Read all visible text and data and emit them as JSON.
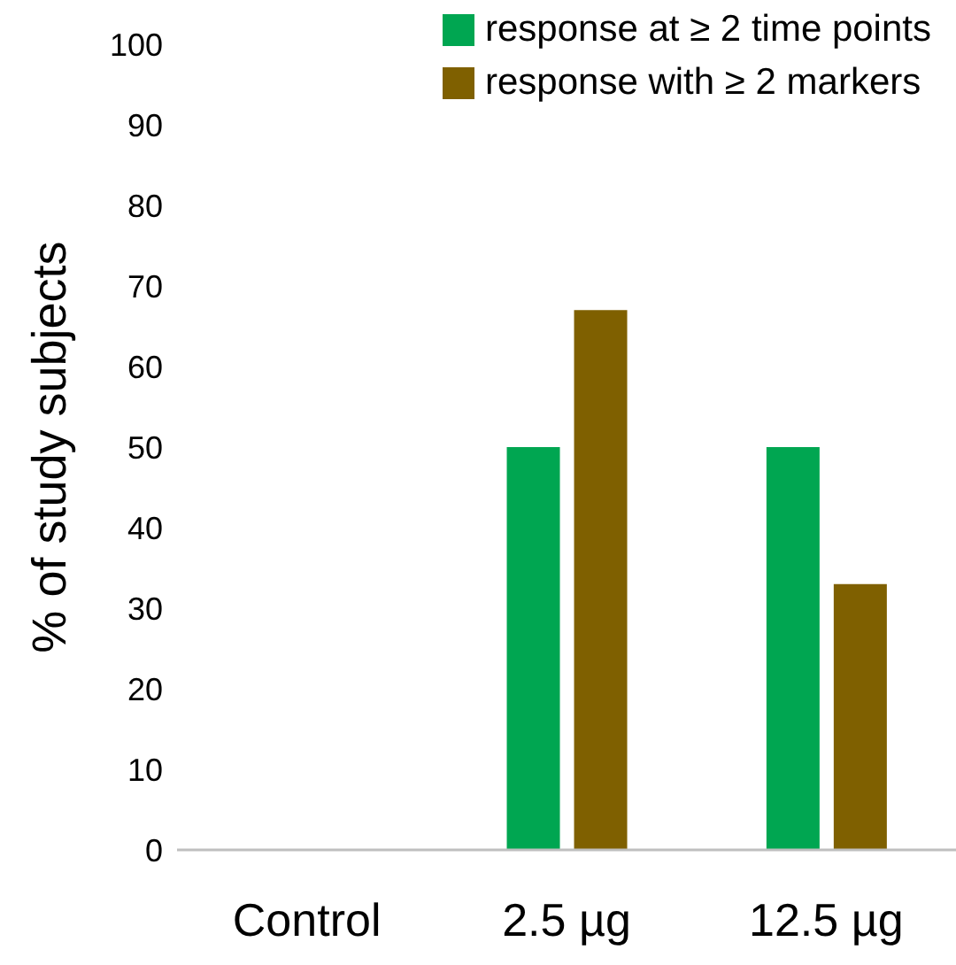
{
  "chart_data": {
    "type": "bar",
    "ylabel": "% of study subjects",
    "categories": [
      "Control",
      "2.5 µg",
      "12.5 µg"
    ],
    "series": [
      {
        "name": "response at ≥ 2 time points",
        "color": "#00a651",
        "values": [
          0,
          50,
          50
        ]
      },
      {
        "name": "response with ≥ 2 markers",
        "color": "#7f6000",
        "values": [
          0,
          67,
          33
        ]
      }
    ],
    "ylim": [
      0,
      100
    ],
    "yticks": [
      0,
      10,
      20,
      30,
      40,
      50,
      60,
      70,
      80,
      90,
      100
    ],
    "grid": false,
    "legend": "top right"
  }
}
